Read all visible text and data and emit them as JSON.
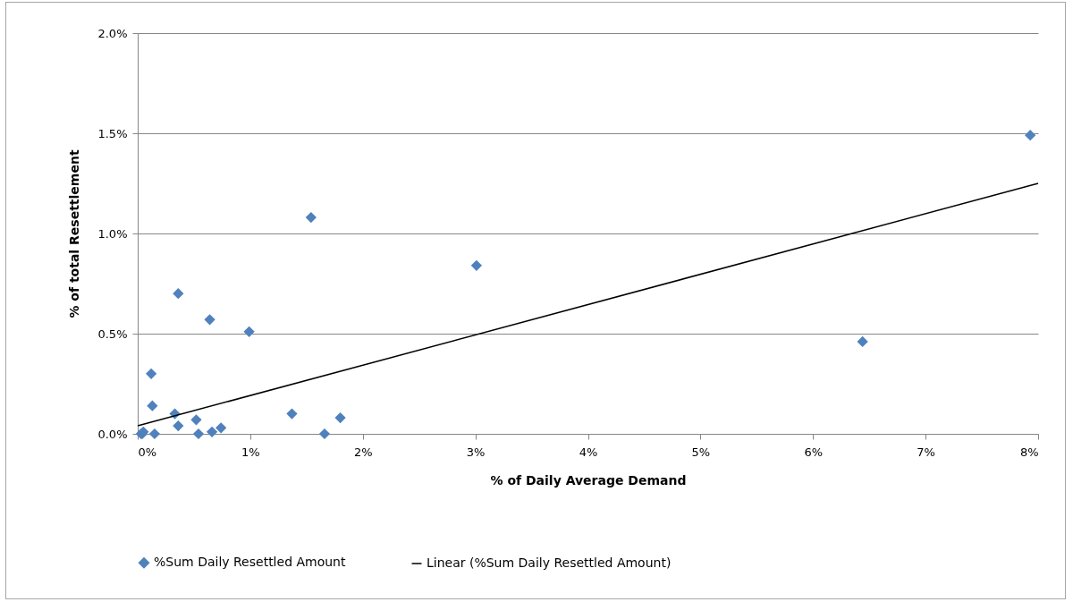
{
  "chart_data": {
    "type": "scatter",
    "xlabel": "% of Daily Average Demand",
    "ylabel": "% of total Resettlement",
    "series": [
      {
        "name": "%Sum Daily Resettled Amount",
        "marker": "diamond",
        "color": "#4f81bd",
        "x": [
          0.03,
          0.04,
          0.05,
          0.12,
          0.13,
          0.15,
          0.33,
          0.36,
          0.36,
          0.52,
          0.54,
          0.64,
          0.66,
          0.74,
          0.99,
          1.37,
          1.54,
          1.66,
          1.8,
          3.01,
          6.44,
          7.93
        ],
        "values": [
          0.0,
          0.0,
          0.01,
          0.3,
          0.14,
          0.0,
          0.1,
          0.04,
          0.7,
          0.07,
          0.0,
          0.57,
          0.01,
          0.03,
          0.51,
          0.1,
          1.08,
          0.0,
          0.08,
          0.84,
          0.46,
          1.49
        ]
      },
      {
        "name": "Linear (%Sum Daily Resettled Amount)",
        "type": "line",
        "color": "#000000",
        "x": [
          0,
          8
        ],
        "values": [
          0.04,
          1.25
        ]
      }
    ],
    "xlim": [
      0,
      8
    ],
    "ylim": [
      0,
      2
    ],
    "xticks": [
      {
        "value": 0,
        "label": "0%"
      },
      {
        "value": 1,
        "label": "1%"
      },
      {
        "value": 2,
        "label": "2%"
      },
      {
        "value": 3,
        "label": "3%"
      },
      {
        "value": 4,
        "label": "4%"
      },
      {
        "value": 5,
        "label": "5%"
      },
      {
        "value": 6,
        "label": "6%"
      },
      {
        "value": 7,
        "label": "7%"
      },
      {
        "value": 8,
        "label": "8%"
      }
    ],
    "yticks": [
      {
        "value": 0,
        "label": "0.0%"
      },
      {
        "value": 0.5,
        "label": "0.5%"
      },
      {
        "value": 1,
        "label": "1.0%"
      },
      {
        "value": 1.5,
        "label": "1.5%"
      },
      {
        "value": 2,
        "label": "2.0%"
      }
    ],
    "grid": "y",
    "legend": "bottom"
  }
}
